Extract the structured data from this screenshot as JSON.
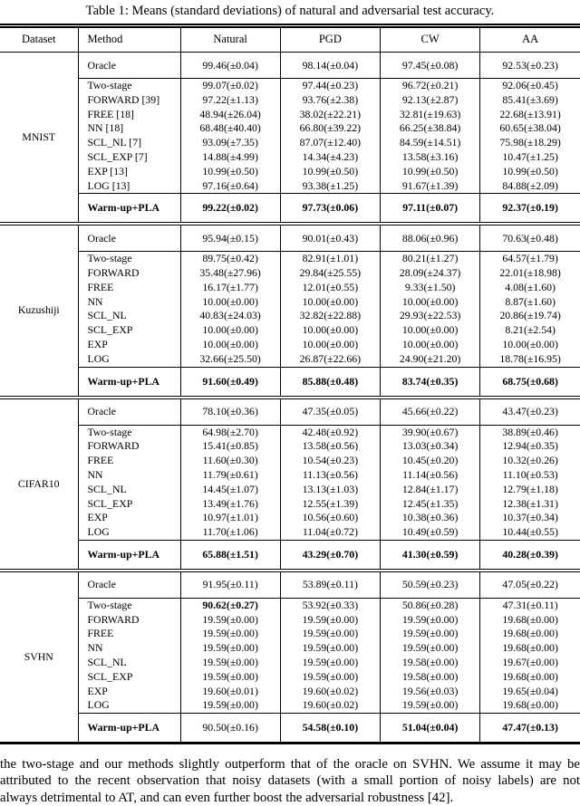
{
  "page": {
    "caption": "Table 1: Means (standard deviations) of natural and adversarial test accuracy.",
    "body_lines": [
      "the two-stage and our methods slightly outperform that of the oracle on SVHN. We assume it may be",
      "attributed to the recent observation that noisy datasets (with a small portion of noisy labels) are not",
      "always detrimental to AT, and can even further boost the adversarial robustness [42]."
    ]
  },
  "table": {
    "columns": [
      "Dataset",
      "Method",
      "Natural",
      "PGD",
      "CW",
      "AA"
    ],
    "sections": [
      {
        "dataset": "MNIST",
        "rows": [
          {
            "label": "Oracle",
            "type": "oracle",
            "values": [
              "99.46(±0.04)",
              "98.14(±0.04)",
              "97.45(±0.08)",
              "92.53(±0.23)"
            ]
          },
          {
            "label": "Two-stage",
            "values": [
              "99.07(±0.02)",
              "97.44(±0.23)",
              "96.72(±0.21)",
              "92.06(±0.45)"
            ]
          },
          {
            "label": "FORWARD [39]",
            "values": [
              "97.22(±1.13)",
              "93.76(±2.38)",
              "92.13(±2.87)",
              "85.41(±3.69)"
            ]
          },
          {
            "label": "FREE [18]",
            "values": [
              "48.94(±26.04)",
              "38.02(±22.21)",
              "32.81(±19.63)",
              "22.68(±13.91)"
            ]
          },
          {
            "label": "NN [18]",
            "values": [
              "68.48(±40.40)",
              "66.80(±39.22)",
              "66.25(±38.84)",
              "60.65(±38.04)"
            ]
          },
          {
            "label": "SCL_NL [7]",
            "values": [
              "93.09(±7.35)",
              "87.07(±12.40)",
              "84.59(±14.51)",
              "75.98(±18.29)"
            ]
          },
          {
            "label": "SCL_EXP [7]",
            "values": [
              "14.88(±4.99)",
              "14.34(±4.23)",
              "13.58(±3.16)",
              "10.47(±1.25)"
            ]
          },
          {
            "label": "EXP [13]",
            "values": [
              "10.99(±0.50)",
              "10.99(±0.50)",
              "10.99(±0.50)",
              "10.99(±0.50)"
            ]
          },
          {
            "label": "LOG [13]",
            "values": [
              "97.16(±0.64)",
              "93.38(±1.25)",
              "91.67(±1.39)",
              "84.88(±2.09)"
            ]
          },
          {
            "label": "Warm-up+PLA",
            "type": "warmup",
            "bold_label": true,
            "bold": [
              true,
              true,
              true,
              true
            ],
            "values": [
              "99.22(±0.02)",
              "97.73(±0.06)",
              "97.11(±0.07)",
              "92.37(±0.19)"
            ]
          }
        ]
      },
      {
        "dataset": "Kuzushiji",
        "rows": [
          {
            "label": "Oracle",
            "type": "oracle",
            "values": [
              "95.94(±0.15)",
              "90.01(±0.43)",
              "88.06(±0.96)",
              "70.63(±0.48)"
            ]
          },
          {
            "label": "Two-stage",
            "values": [
              "89.75(±0.42)",
              "82.91(±1.01)",
              "80.21(±1.27)",
              "64.57(±1.79)"
            ]
          },
          {
            "label": "FORWARD",
            "values": [
              "35.48(±27.96)",
              "29.84(±25.55)",
              "28.09(±24.37)",
              "22.01(±18.98)"
            ]
          },
          {
            "label": "FREE",
            "values": [
              "16.17(±1.77)",
              "12.01(±0.55)",
              "9.33(±1.50)",
              "4.08(±1.60)"
            ]
          },
          {
            "label": "NN",
            "values": [
              "10.00(±0.00)",
              "10.00(±0.00)",
              "10.00(±0.00)",
              "8.87(±1.60)"
            ]
          },
          {
            "label": "SCL_NL",
            "values": [
              "40.83(±24.03)",
              "32.82(±22.88)",
              "29.93(±22.53)",
              "20.86(±19.74)"
            ]
          },
          {
            "label": "SCL_EXP",
            "values": [
              "10.00(±0.00)",
              "10.00(±0.00)",
              "10.00(±0.00)",
              "8.21(±2.54)"
            ]
          },
          {
            "label": "EXP",
            "values": [
              "10.00(±0.00)",
              "10.00(±0.00)",
              "10.00(±0.00)",
              "10.00(±0.00)"
            ]
          },
          {
            "label": "LOG",
            "values": [
              "32.66(±25.50)",
              "26.87(±22.66)",
              "24.90(±21.20)",
              "18.78(±16.95)"
            ]
          },
          {
            "label": "Warm-up+PLA",
            "type": "warmup",
            "bold_label": true,
            "bold": [
              true,
              true,
              true,
              true
            ],
            "values": [
              "91.60(±0.49)",
              "85.88(±0.48)",
              "83.74(±0.35)",
              "68.75(±0.68)"
            ]
          }
        ]
      },
      {
        "dataset": "CIFAR10",
        "rows": [
          {
            "label": "Oracle",
            "type": "oracle",
            "values": [
              "78.10(±0.36)",
              "47.35(±0.05)",
              "45.66(±0.22)",
              "43.47(±0.23)"
            ]
          },
          {
            "label": "Two-stage",
            "values": [
              "64.98(±2.70)",
              "42.48(±0.92)",
              "39.90(±0.67)",
              "38.89(±0.46)"
            ]
          },
          {
            "label": "FORWARD",
            "values": [
              "15.41(±0.85)",
              "13.58(±0.56)",
              "13.03(±0.34)",
              "12.94(±0.35)"
            ]
          },
          {
            "label": "FREE",
            "values": [
              "11.60(±0.30)",
              "10.54(±0.23)",
              "10.45(±0.20)",
              "10.32(±0.26)"
            ]
          },
          {
            "label": "NN",
            "values": [
              "11.79(±0.61)",
              "11.13(±0.56)",
              "11.14(±0.56)",
              "11.10(±0.53)"
            ]
          },
          {
            "label": "SCL_NL",
            "values": [
              "14.45(±1.07)",
              "13.13(±1.03)",
              "12.84(±1.17)",
              "12.79(±1.18)"
            ]
          },
          {
            "label": "SCL_EXP",
            "values": [
              "13.49(±1.76)",
              "12.55(±1.39)",
              "12.45(±1.35)",
              "12.38(±1.31)"
            ]
          },
          {
            "label": "EXP",
            "values": [
              "10.97(±1.01)",
              "10.56(±0.60)",
              "10.38(±0.36)",
              "10.37(±0.34)"
            ]
          },
          {
            "label": "LOG",
            "values": [
              "11.70(±1.06)",
              "11.04(±0.72)",
              "10.49(±0.59)",
              "10.44(±0.55)"
            ]
          },
          {
            "label": "Warm-up+PLA",
            "type": "warmup",
            "bold_label": true,
            "bold": [
              true,
              true,
              true,
              true
            ],
            "values": [
              "65.88(±1.51)",
              "43.29(±0.70)",
              "41.30(±0.59)",
              "40.28(±0.39)"
            ]
          }
        ]
      },
      {
        "dataset": "SVHN",
        "rows": [
          {
            "label": "Oracle",
            "type": "oracle",
            "values": [
              "91.95(±0.11)",
              "53.89(±0.11)",
              "50.59(±0.23)",
              "47.05(±0.22)"
            ]
          },
          {
            "label": "Two-stage",
            "bold": [
              true,
              false,
              false,
              false
            ],
            "values": [
              "90.62(±0.27)",
              "53.92(±0.33)",
              "50.86(±0.28)",
              "47.31(±0.11)"
            ]
          },
          {
            "label": "FORWARD",
            "values": [
              "19.59(±0.00)",
              "19.59(±0.00)",
              "19.59(±0.00)",
              "19.68(±0.00)"
            ]
          },
          {
            "label": "FREE",
            "values": [
              "19.59(±0.00)",
              "19.59(±0.00)",
              "19.59(±0.00)",
              "19.68(±0.00)"
            ]
          },
          {
            "label": "NN",
            "values": [
              "19.59(±0.00)",
              "19.59(±0.00)",
              "19.59(±0.00)",
              "19.68(±0.00)"
            ]
          },
          {
            "label": "SCL_NL",
            "values": [
              "19.59(±0.00)",
              "19.59(±0.00)",
              "19.58(±0.00)",
              "19.67(±0.00)"
            ]
          },
          {
            "label": "SCL_EXP",
            "values": [
              "19.59(±0.00)",
              "19.59(±0.00)",
              "19.58(±0.00)",
              "19.68(±0.00)"
            ]
          },
          {
            "label": "EXP",
            "values": [
              "19.60(±0.01)",
              "19.60(±0.02)",
              "19.56(±0.03)",
              "19.65(±0.04)"
            ]
          },
          {
            "label": "LOG",
            "values": [
              "19.59(±0.00)",
              "19.60(±0.02)",
              "19.59(±0.00)",
              "19.68(±0.00)"
            ]
          },
          {
            "label": "Warm-up+PLA",
            "type": "warmup",
            "bold_label": true,
            "bold": [
              false,
              true,
              true,
              true
            ],
            "values": [
              "90.50(±0.16)",
              "54.58(±0.10)",
              "51.04(±0.04)",
              "47.47(±0.13)"
            ]
          }
        ]
      }
    ]
  }
}
